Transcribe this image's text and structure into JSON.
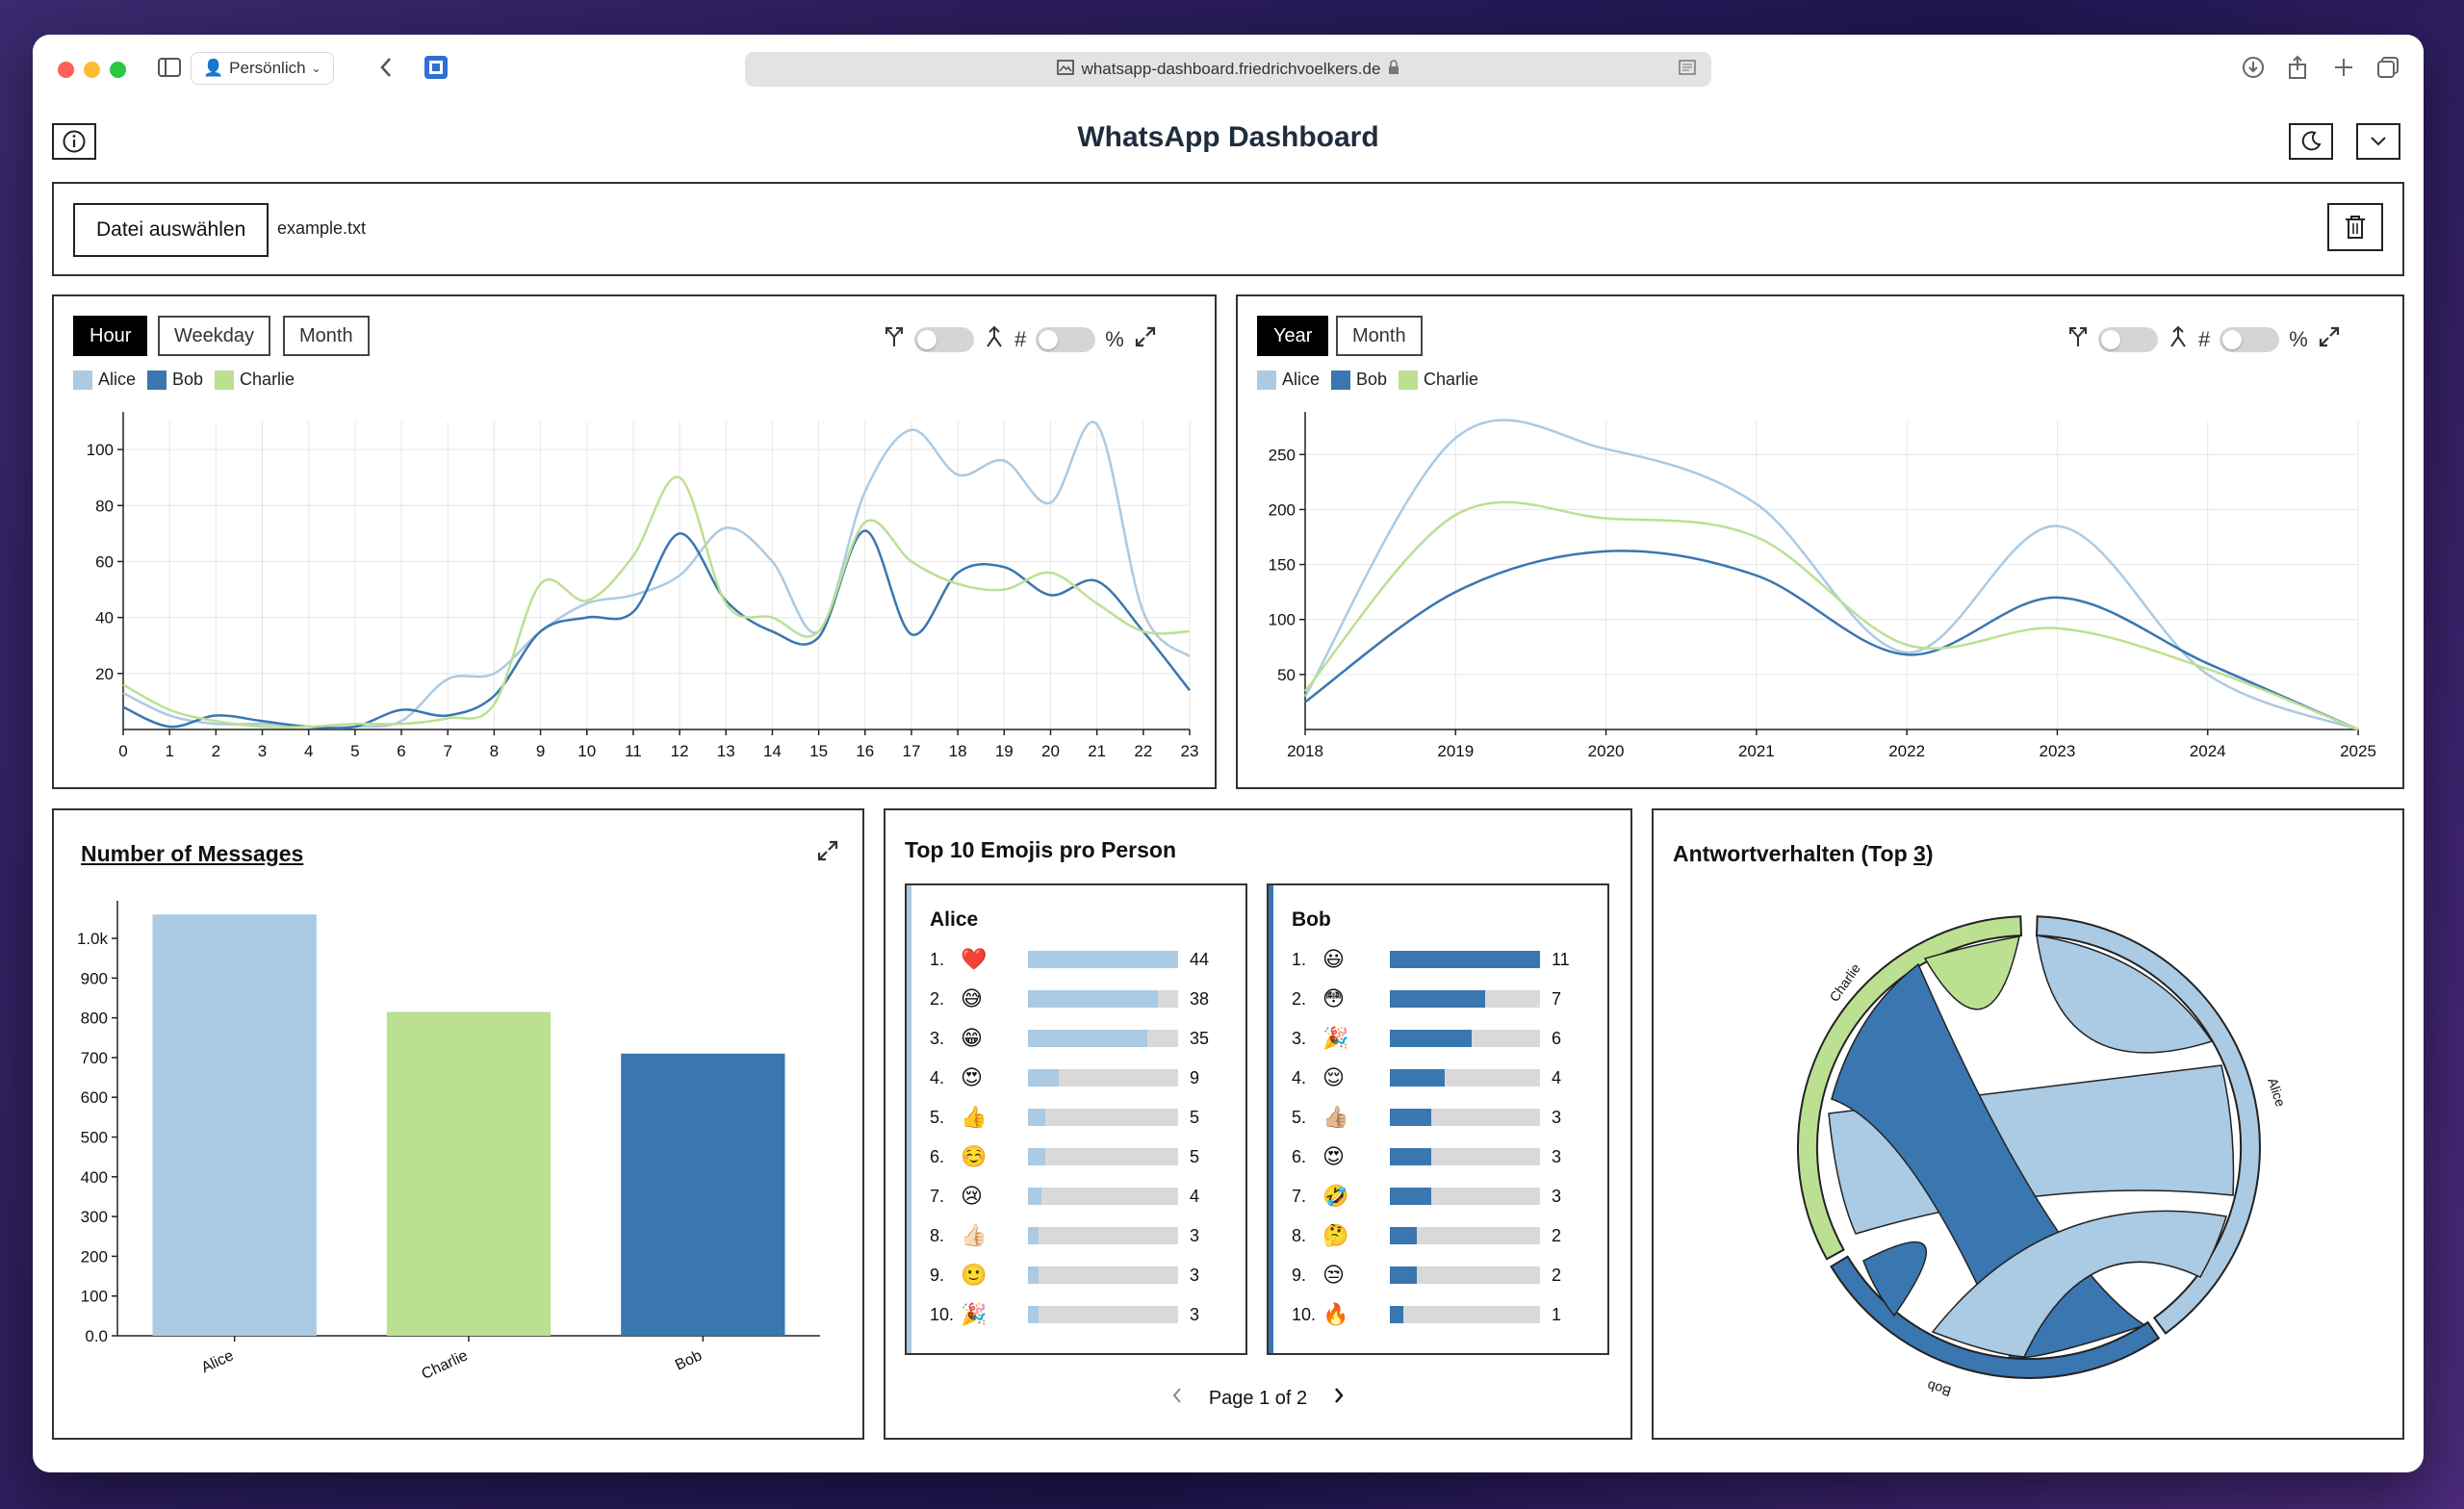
{
  "browser": {
    "profile": "Persönlich",
    "url": "whatsapp-dashboard.friedrichvoelkers.de"
  },
  "app": {
    "title": "WhatsApp Dashboard"
  },
  "file": {
    "button_label": "Datei auswählen",
    "file_name": "example.txt"
  },
  "colors": {
    "alice": "#abcae3",
    "bob": "#3a76b0",
    "charlie": "#bbe092",
    "track": "#d9d9d9"
  },
  "time_chart": {
    "tabs": [
      "Hour",
      "Weekday",
      "Month"
    ],
    "active_tab": "Hour",
    "legend": [
      "Alice",
      "Bob",
      "Charlie"
    ],
    "percent_symbol": "%",
    "hash_symbol": "#"
  },
  "year_chart": {
    "tabs": [
      "Year",
      "Month"
    ],
    "active_tab": "Year",
    "legend": [
      "Alice",
      "Bob",
      "Charlie"
    ],
    "percent_symbol": "%",
    "hash_symbol": "#"
  },
  "messages": {
    "title": "Number of Messages"
  },
  "emojis": {
    "title": "Top 10 Emojis pro Person",
    "pagination": "Page 1 of 2",
    "people": [
      {
        "name": "Alice",
        "max": 44,
        "items": [
          {
            "rank": "1.",
            "emoji": "❤️",
            "count": 44
          },
          {
            "rank": "2.",
            "emoji": "😅",
            "count": 38
          },
          {
            "rank": "3.",
            "emoji": "😁",
            "count": 35
          },
          {
            "rank": "4.",
            "emoji": "😍",
            "count": 9
          },
          {
            "rank": "5.",
            "emoji": "👍",
            "count": 5
          },
          {
            "rank": "6.",
            "emoji": "☺️",
            "count": 5
          },
          {
            "rank": "7.",
            "emoji": "😢",
            "count": 4
          },
          {
            "rank": "8.",
            "emoji": "👍🏻",
            "count": 3
          },
          {
            "rank": "9.",
            "emoji": "🙂",
            "count": 3
          },
          {
            "rank": "10.",
            "emoji": "🎉",
            "count": 3
          }
        ]
      },
      {
        "name": "Bob",
        "max": 11,
        "items": [
          {
            "rank": "1.",
            "emoji": "😃",
            "count": 11
          },
          {
            "rank": "2.",
            "emoji": "😳",
            "count": 7
          },
          {
            "rank": "3.",
            "emoji": "🎉",
            "count": 6
          },
          {
            "rank": "4.",
            "emoji": "😌",
            "count": 4
          },
          {
            "rank": "5.",
            "emoji": "👍🏼",
            "count": 3
          },
          {
            "rank": "6.",
            "emoji": "😍",
            "count": 3
          },
          {
            "rank": "7.",
            "emoji": "🤣",
            "count": 3
          },
          {
            "rank": "8.",
            "emoji": "🤔",
            "count": 2
          },
          {
            "rank": "9.",
            "emoji": "😒",
            "count": 2
          },
          {
            "rank": "10.",
            "emoji": "🔥",
            "count": 1
          }
        ]
      }
    ]
  },
  "reply": {
    "title_prefix": "Antwortverhalten (Top ",
    "title_num": "3",
    "title_suffix": ")",
    "labels": [
      "Alice",
      "Bob",
      "Charlie"
    ]
  },
  "chart_data": [
    {
      "type": "line",
      "x": [
        0,
        1,
        2,
        3,
        4,
        5,
        6,
        7,
        8,
        9,
        10,
        11,
        12,
        13,
        14,
        15,
        16,
        17,
        18,
        19,
        20,
        21,
        22,
        23
      ],
      "ylim": [
        0,
        110
      ],
      "yticks": [
        20,
        40,
        60,
        80,
        100
      ],
      "series": [
        {
          "name": "Alice",
          "values": [
            13,
            5,
            2,
            2,
            1,
            1,
            3,
            18,
            20,
            35,
            45,
            48,
            55,
            72,
            60,
            35,
            85,
            107,
            91,
            96,
            81,
            109,
            42,
            26
          ]
        },
        {
          "name": "Bob",
          "values": [
            8,
            1,
            5,
            3,
            1,
            1,
            7,
            5,
            12,
            35,
            40,
            42,
            70,
            46,
            35,
            33,
            71,
            34,
            56,
            58,
            48,
            53,
            35,
            14
          ]
        },
        {
          "name": "Charlie",
          "values": [
            16,
            7,
            3,
            1,
            1,
            2,
            2,
            4,
            9,
            52,
            46,
            62,
            90,
            45,
            40,
            35,
            74,
            60,
            52,
            50,
            56,
            45,
            35,
            35
          ]
        }
      ]
    },
    {
      "type": "line",
      "x": [
        2018,
        2019,
        2020,
        2021,
        2022,
        2023,
        2024,
        2025
      ],
      "ylim": [
        0,
        280
      ],
      "yticks": [
        50,
        100,
        150,
        200,
        250
      ],
      "series": [
        {
          "name": "Alice",
          "values": [
            30,
            265,
            255,
            205,
            70,
            185,
            50,
            0
          ]
        },
        {
          "name": "Bob",
          "values": [
            25,
            125,
            162,
            140,
            68,
            120,
            60,
            0
          ]
        },
        {
          "name": "Charlie",
          "values": [
            35,
            195,
            192,
            175,
            77,
            92,
            55,
            0
          ]
        }
      ]
    },
    {
      "type": "bar",
      "title": "Number of Messages",
      "categories": [
        "Alice",
        "Charlie",
        "Bob"
      ],
      "values": [
        1060,
        815,
        710
      ],
      "ylim": [
        0,
        1080
      ],
      "yticks": [
        "0.0",
        "100",
        "200",
        "300",
        "400",
        "500",
        "600",
        "700",
        "800",
        "900",
        "1.0k"
      ]
    }
  ]
}
